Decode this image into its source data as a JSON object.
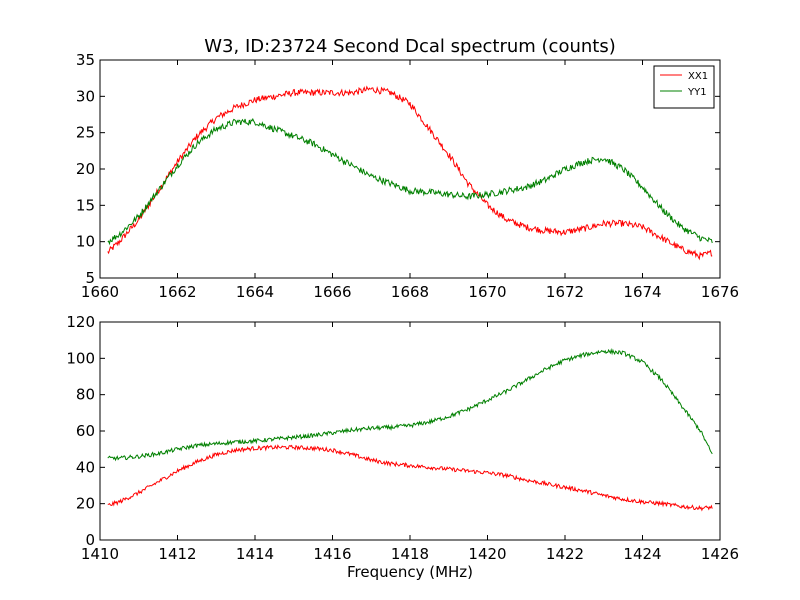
{
  "chart_data": [
    {
      "type": "line",
      "title": "W3, ID:23724 Second Dcal spectrum (counts)",
      "xlabel": "",
      "ylabel": "",
      "xlim": [
        1660,
        1676
      ],
      "ylim": [
        5,
        35
      ],
      "xticks": [
        "1660",
        "1662",
        "1664",
        "1666",
        "1668",
        "1670",
        "1672",
        "1674",
        "1676"
      ],
      "yticks": [
        "5",
        "10",
        "15",
        "20",
        "25",
        "30",
        "35"
      ],
      "grid": false,
      "legend": "top-right",
      "series": [
        {
          "name": "XX1",
          "color": "#ff0000",
          "x": [
            1660.2,
            1660.5,
            1661.0,
            1661.5,
            1662.0,
            1662.5,
            1663.0,
            1663.5,
            1664.0,
            1664.5,
            1665.0,
            1665.5,
            1666.0,
            1666.5,
            1667.0,
            1667.5,
            1668.0,
            1668.5,
            1669.0,
            1669.5,
            1670.0,
            1670.5,
            1671.0,
            1671.5,
            1672.0,
            1672.5,
            1673.0,
            1673.5,
            1674.0,
            1674.5,
            1675.0,
            1675.5,
            1675.8
          ],
          "values": [
            8.5,
            10,
            13,
            17,
            21,
            24.5,
            27,
            28.5,
            29.5,
            30,
            30.5,
            30.5,
            30.5,
            30.5,
            31,
            30.5,
            29,
            25.5,
            22,
            18,
            15,
            13,
            12,
            11.5,
            11.3,
            11.8,
            12.5,
            12.5,
            12,
            10.5,
            9,
            8,
            8.5
          ]
        },
        {
          "name": "YY1",
          "color": "#008000",
          "x": [
            1660.2,
            1660.5,
            1661.0,
            1661.5,
            1662.0,
            1662.5,
            1663.0,
            1663.5,
            1664.0,
            1664.5,
            1665.0,
            1665.5,
            1666.0,
            1666.5,
            1667.0,
            1667.5,
            1668.0,
            1668.5,
            1669.0,
            1669.5,
            1670.0,
            1670.5,
            1671.0,
            1671.5,
            1672.0,
            1672.5,
            1673.0,
            1673.5,
            1674.0,
            1674.5,
            1675.0,
            1675.5,
            1675.8
          ],
          "values": [
            10,
            11,
            13.5,
            17,
            20.5,
            23.5,
            25.5,
            26.5,
            26.5,
            25.5,
            24.5,
            23.5,
            22,
            20.5,
            19,
            18,
            17,
            16.8,
            16.5,
            16.2,
            16.5,
            17,
            17.5,
            18.5,
            20,
            21,
            21.5,
            20,
            17.5,
            14.5,
            12,
            10.5,
            10
          ]
        }
      ]
    },
    {
      "type": "line",
      "title": "",
      "xlabel": "Frequency (MHz)",
      "ylabel": "",
      "xlim": [
        1410,
        1426
      ],
      "ylim": [
        0,
        120
      ],
      "xticks": [
        "1410",
        "1412",
        "1414",
        "1416",
        "1418",
        "1420",
        "1422",
        "1424",
        "1426"
      ],
      "yticks": [
        "0",
        "20",
        "40",
        "60",
        "80",
        "100",
        "120"
      ],
      "grid": false,
      "legend": "none",
      "series": [
        {
          "color": "#ff0000",
          "x": [
            1410.2,
            1410.5,
            1411.0,
            1411.5,
            1412.0,
            1412.5,
            1413.0,
            1413.5,
            1414.0,
            1414.5,
            1415.0,
            1415.5,
            1416.0,
            1416.5,
            1417.0,
            1417.5,
            1418.0,
            1418.5,
            1419.0,
            1419.5,
            1420.0,
            1420.5,
            1420.8,
            1421.0,
            1421.5,
            1422.0,
            1422.5,
            1423.0,
            1423.5,
            1424.0,
            1424.5,
            1425.0,
            1425.5,
            1425.8
          ],
          "values": [
            19,
            21,
            26,
            32,
            38,
            43,
            47,
            49.5,
            50.5,
            51,
            51,
            50.5,
            49.5,
            47,
            44,
            42,
            41,
            40,
            39,
            38,
            37,
            35.5,
            34,
            33,
            31,
            29,
            27,
            24.5,
            22.5,
            21,
            20,
            18.5,
            17.5,
            18
          ]
        },
        {
          "color": "#008000",
          "x": [
            1410.2,
            1410.5,
            1411.0,
            1411.5,
            1412.0,
            1412.5,
            1413.0,
            1413.5,
            1414.0,
            1414.5,
            1415.0,
            1415.5,
            1416.0,
            1416.5,
            1417.0,
            1417.5,
            1418.0,
            1418.5,
            1419.0,
            1419.5,
            1420.0,
            1420.5,
            1421.0,
            1421.5,
            1422.0,
            1422.5,
            1423.0,
            1423.5,
            1424.0,
            1424.5,
            1425.0,
            1425.5,
            1425.8
          ],
          "values": [
            45,
            45,
            46,
            47.5,
            50,
            52,
            53,
            54,
            54.5,
            55.5,
            56.5,
            57.5,
            59,
            60.5,
            61.5,
            62,
            63,
            65,
            68,
            72,
            77,
            82,
            88,
            94,
            99,
            102,
            104,
            103,
            98,
            88,
            74,
            60,
            47
          ]
        }
      ]
    }
  ]
}
